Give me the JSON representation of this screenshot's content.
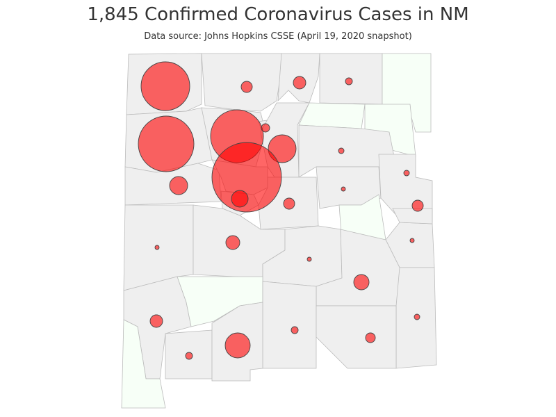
{
  "title": "1,845 Confirmed Coronavirus Cases in NM",
  "subtitle": "Data source: Johns Hopkins CSSE (April 19, 2020 snapshot)",
  "colors": {
    "county_with_cases": "#efefef",
    "county_without_cases": "#f7fff7",
    "county_border": "#bbbbbb",
    "bubble_fill": "#ff0000",
    "bubble_stroke": "#444444"
  }
}
